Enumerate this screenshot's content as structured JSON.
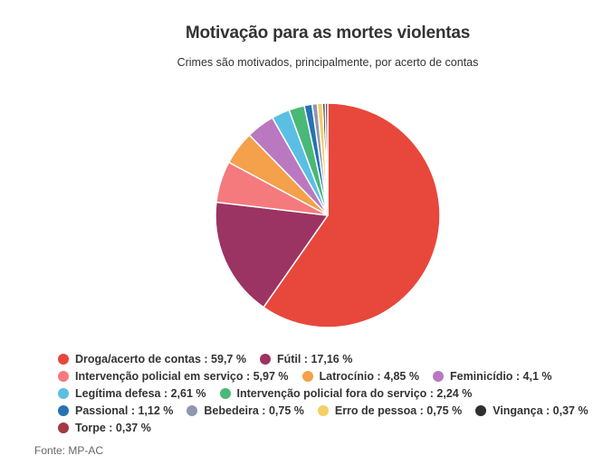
{
  "chart_data": {
    "type": "pie",
    "title": "Motivação para as mortes violentas",
    "subtitle": "Crimes são motivados, principalmente, por acerto de contas",
    "source": "Fonte: MP-AC",
    "legend_position": "bottom-left",
    "slices": [
      {
        "label": "Droga/acerto de contas",
        "value": 59.7,
        "value_text": "59,7 %",
        "color": "#e8473b"
      },
      {
        "label": "Fútil",
        "value": 17.16,
        "value_text": "17,16 %",
        "color": "#9b3462"
      },
      {
        "label": "Intervenção policial em serviço",
        "value": 5.97,
        "value_text": "5,97 %",
        "color": "#f47a7e"
      },
      {
        "label": "Latrocínio",
        "value": 4.85,
        "value_text": "4,85 %",
        "color": "#f5a04a"
      },
      {
        "label": "Feminicídio",
        "value": 4.1,
        "value_text": "4,1 %",
        "color": "#ba78c1"
      },
      {
        "label": "Legítima defesa",
        "value": 2.61,
        "value_text": "2,61 %",
        "color": "#5bbfe4"
      },
      {
        "label": "Intervenção policial fora do serviço",
        "value": 2.24,
        "value_text": "2,24 %",
        "color": "#4ab876"
      },
      {
        "label": "Passional",
        "value": 1.12,
        "value_text": "1,12 %",
        "color": "#2672b3"
      },
      {
        "label": "Bebedeira",
        "value": 0.75,
        "value_text": "0,75 %",
        "color": "#8f97b1"
      },
      {
        "label": "Erro de pessoa",
        "value": 0.75,
        "value_text": "0,75 %",
        "color": "#f7cd67"
      },
      {
        "label": "Vingança",
        "value": 0.37,
        "value_text": "0,37 %",
        "color": "#2f2f2f"
      },
      {
        "label": "Torpe",
        "value": 0.37,
        "value_text": "0,37 %",
        "color": "#a03a45"
      }
    ]
  }
}
